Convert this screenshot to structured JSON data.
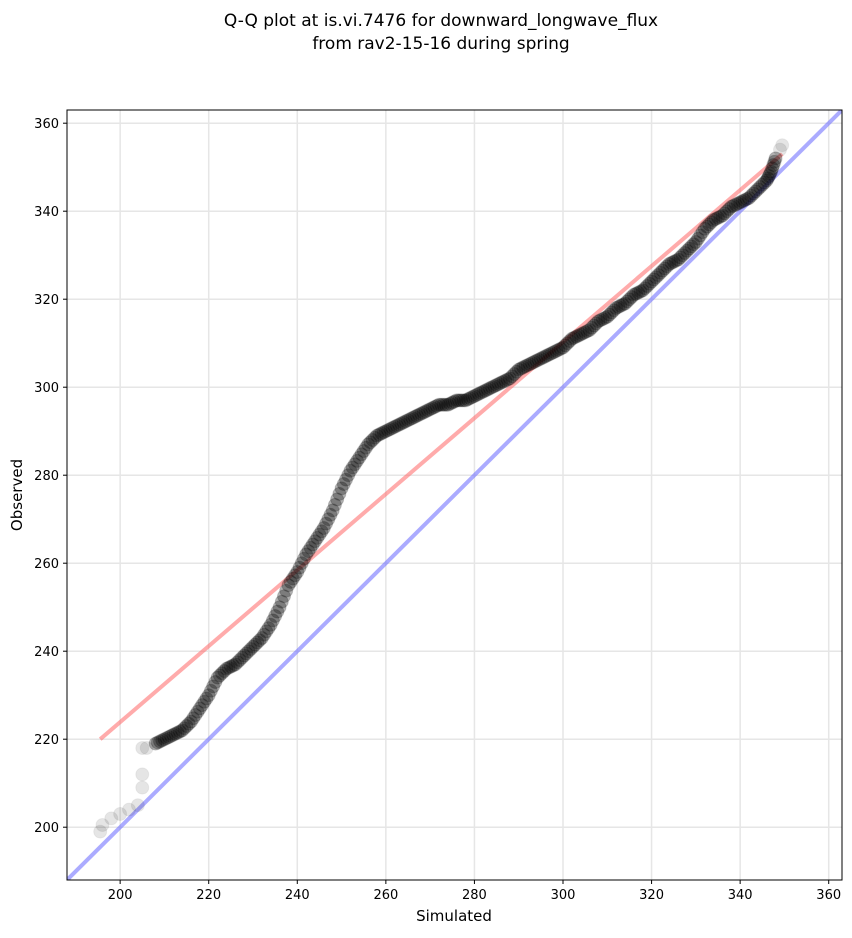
{
  "chart_data": {
    "type": "scatter",
    "title_line1": "Q-Q plot at is.vi.7476 for downward_longwave_flux",
    "title_line2": "from rav2-15-16 during spring",
    "xlabel": "Simulated",
    "ylabel": "Observed",
    "xlim": [
      188,
      363
    ],
    "ylim": [
      188,
      363
    ],
    "xticks": [
      200,
      220,
      240,
      260,
      280,
      300,
      320,
      340,
      360
    ],
    "yticks": [
      200,
      220,
      240,
      260,
      280,
      300,
      320,
      340,
      360
    ],
    "grid": true,
    "colors": {
      "points": "#000000",
      "fit_line": "#ff6666",
      "identity_line": "#6666ff"
    },
    "identity_line": {
      "label": "1:1",
      "from": [
        188,
        188
      ],
      "to": [
        363,
        363
      ]
    },
    "fit_line": {
      "from": [
        195.5,
        220
      ],
      "to": [
        349.5,
        353
      ]
    },
    "points": [
      [
        195.5,
        199
      ],
      [
        196,
        200.5
      ],
      [
        198,
        202
      ],
      [
        200,
        203
      ],
      [
        202,
        204
      ],
      [
        204,
        205
      ],
      [
        205,
        209
      ],
      [
        205,
        212
      ],
      [
        205,
        218
      ],
      [
        206,
        218
      ],
      [
        208,
        219
      ],
      [
        210,
        220
      ],
      [
        212,
        221
      ],
      [
        214,
        222
      ],
      [
        216,
        224
      ],
      [
        218,
        227
      ],
      [
        220,
        230
      ],
      [
        222,
        234
      ],
      [
        224,
        236
      ],
      [
        226,
        237
      ],
      [
        228,
        239
      ],
      [
        230,
        241
      ],
      [
        232,
        243
      ],
      [
        234,
        246
      ],
      [
        236,
        250
      ],
      [
        238,
        255
      ],
      [
        240,
        258
      ],
      [
        242,
        262
      ],
      [
        244,
        265
      ],
      [
        246,
        268
      ],
      [
        248,
        272
      ],
      [
        250,
        277
      ],
      [
        252,
        281
      ],
      [
        254,
        284
      ],
      [
        256,
        287
      ],
      [
        258,
        289
      ],
      [
        260,
        290
      ],
      [
        262,
        291
      ],
      [
        264,
        292
      ],
      [
        266,
        293
      ],
      [
        268,
        294
      ],
      [
        270,
        295
      ],
      [
        272,
        296
      ],
      [
        274,
        296
      ],
      [
        276,
        297
      ],
      [
        278,
        297
      ],
      [
        280,
        298
      ],
      [
        282,
        299
      ],
      [
        284,
        300
      ],
      [
        286,
        301
      ],
      [
        288,
        302
      ],
      [
        290,
        304
      ],
      [
        292,
        305
      ],
      [
        294,
        306
      ],
      [
        296,
        307
      ],
      [
        298,
        308
      ],
      [
        300,
        309
      ],
      [
        302,
        311
      ],
      [
        304,
        312
      ],
      [
        306,
        313
      ],
      [
        308,
        315
      ],
      [
        310,
        316
      ],
      [
        312,
        318
      ],
      [
        314,
        319
      ],
      [
        316,
        321
      ],
      [
        318,
        322
      ],
      [
        320,
        324
      ],
      [
        322,
        326
      ],
      [
        324,
        328
      ],
      [
        326,
        329
      ],
      [
        328,
        331
      ],
      [
        330,
        333
      ],
      [
        332,
        336
      ],
      [
        334,
        338
      ],
      [
        336,
        339
      ],
      [
        338,
        341
      ],
      [
        340,
        342
      ],
      [
        342,
        343
      ],
      [
        344,
        345
      ],
      [
        346,
        347
      ],
      [
        347,
        349
      ],
      [
        348,
        352
      ],
      [
        349,
        354
      ],
      [
        349.5,
        355
      ]
    ]
  }
}
